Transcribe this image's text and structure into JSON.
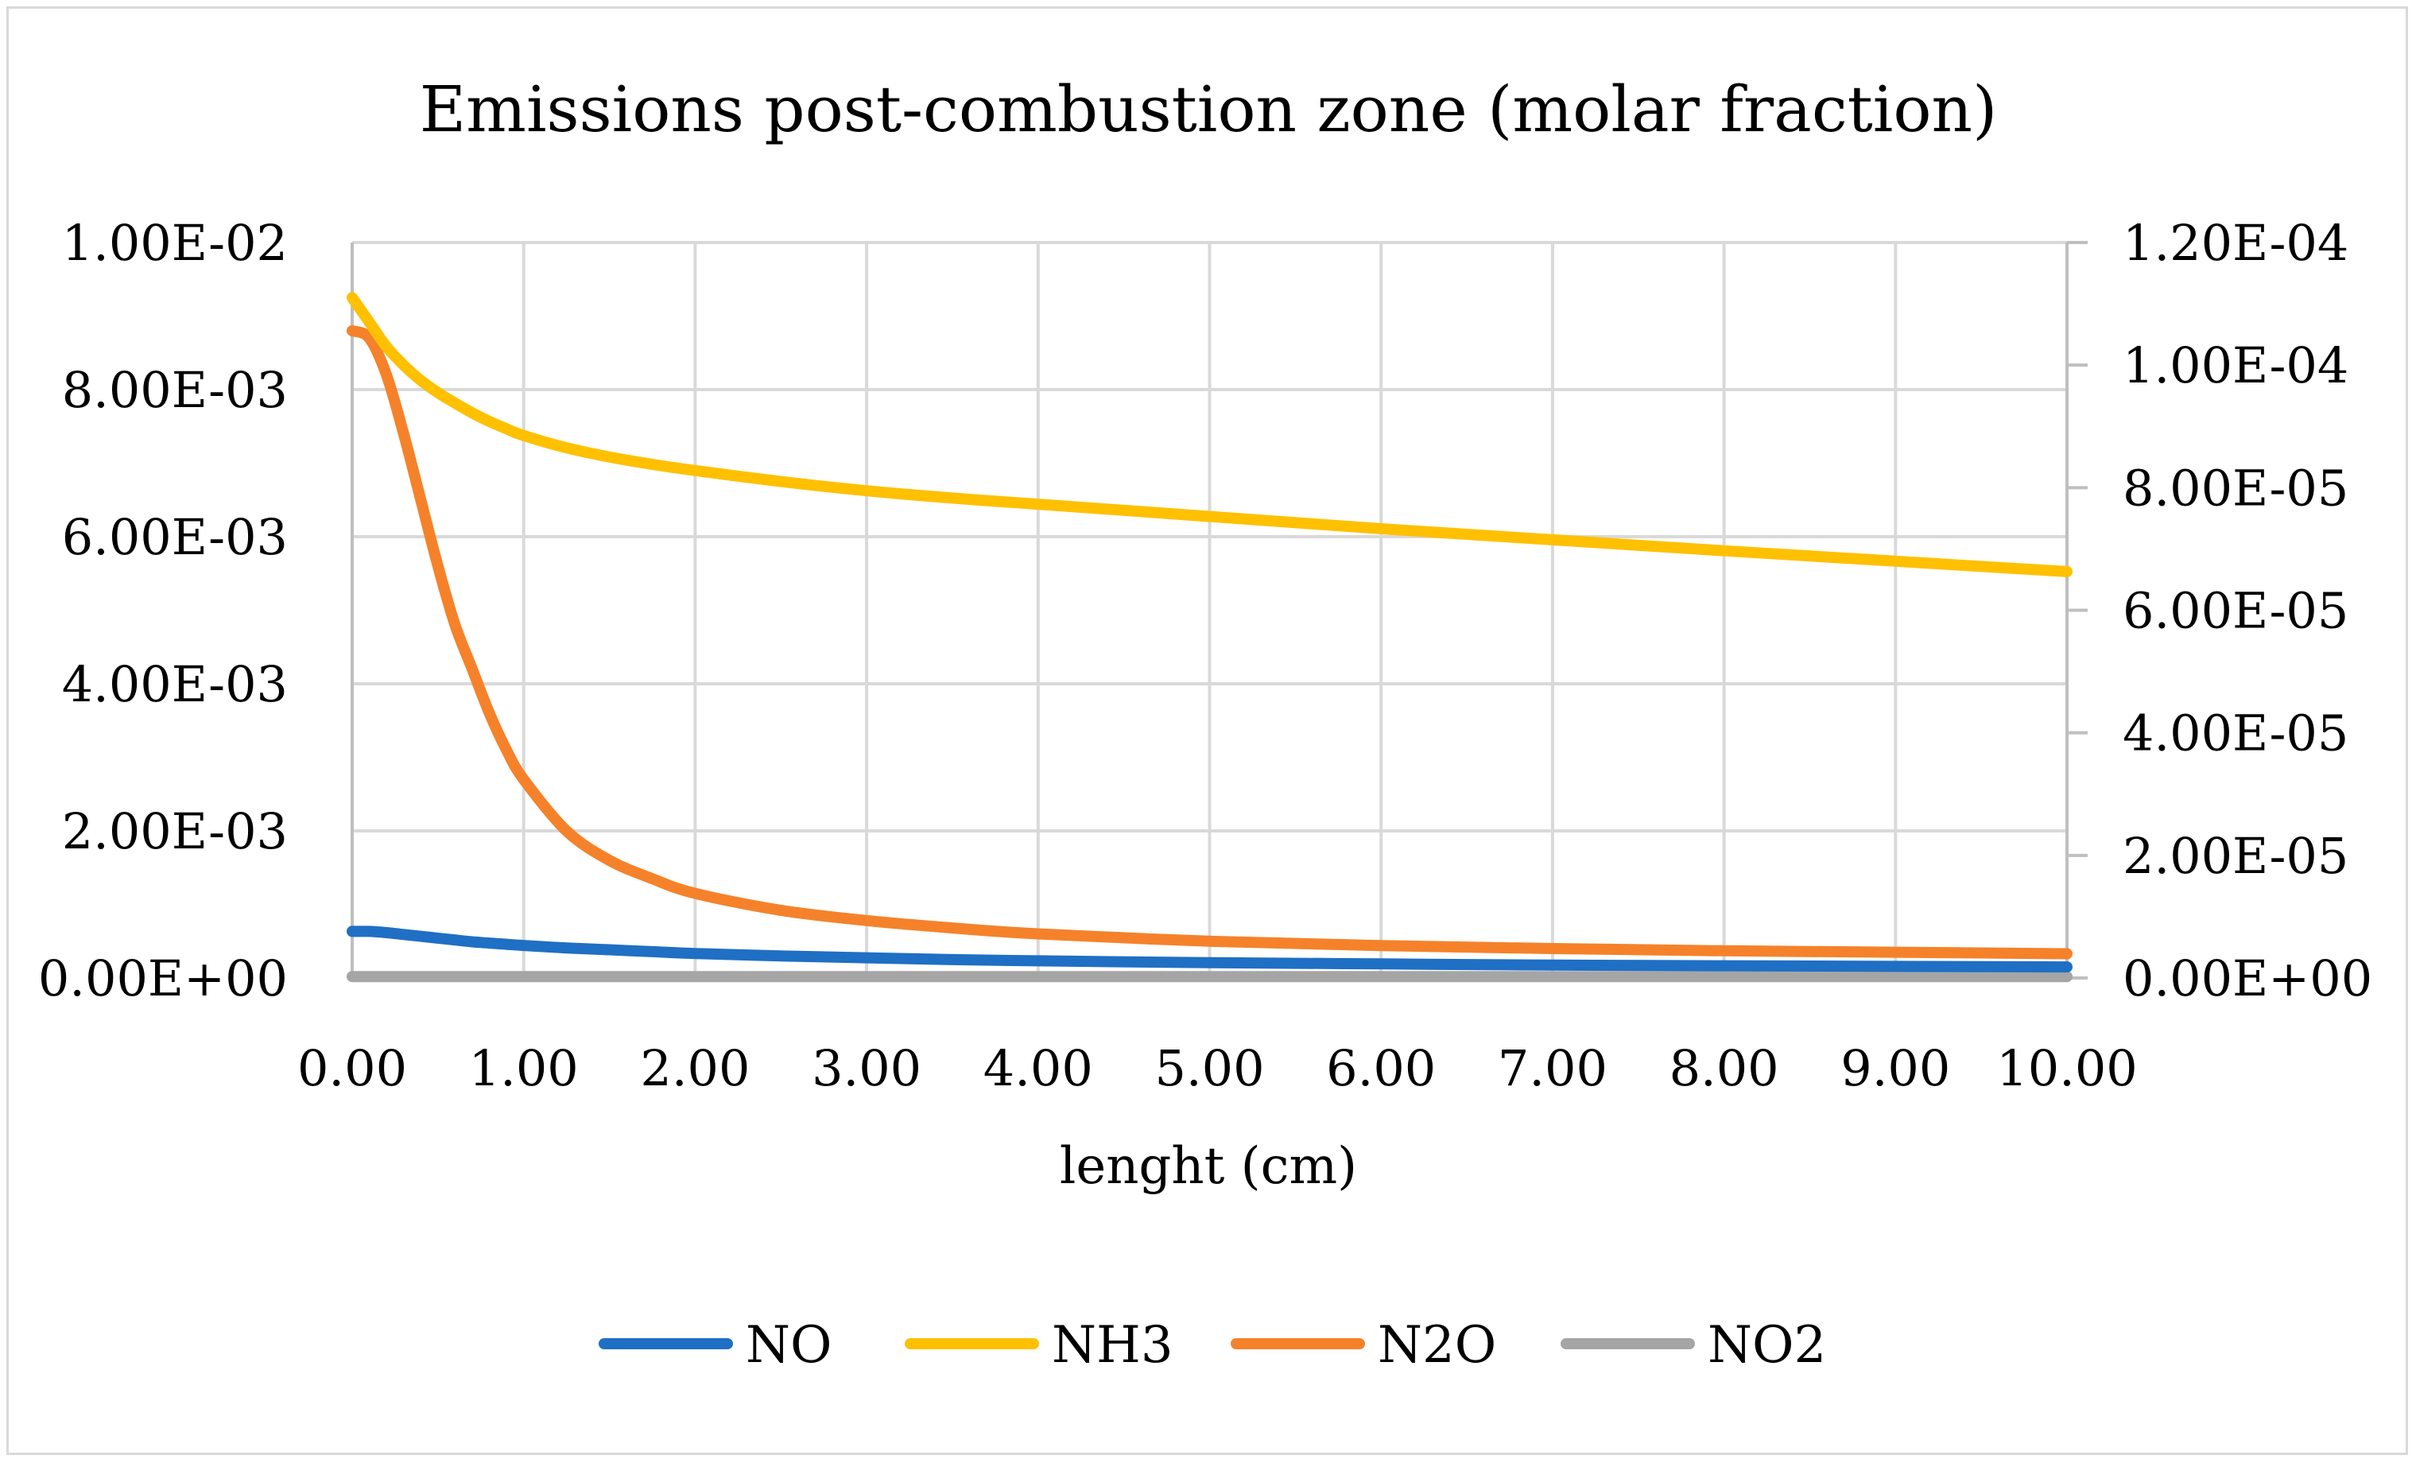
{
  "chart_data": {
    "type": "line",
    "title": "Emissions post-combustion zone (molar fraction)",
    "xlabel": "lenght (cm)",
    "ylabel": "",
    "xlim": [
      0,
      10
    ],
    "ylim": [
      0,
      0.01
    ],
    "y2lim": [
      0,
      0.00012
    ],
    "grid": true,
    "legend_position": "bottom",
    "x_ticks": [
      "0.00",
      "1.00",
      "2.00",
      "3.00",
      "4.00",
      "5.00",
      "6.00",
      "7.00",
      "8.00",
      "9.00",
      "10.00"
    ],
    "y_ticks": [
      "0.00E+00",
      "2.00E-03",
      "4.00E-03",
      "6.00E-03",
      "8.00E-03",
      "1.00E-02"
    ],
    "y2_ticks": [
      "0.00E+00",
      "2.00E-05",
      "4.00E-05",
      "6.00E-05",
      "8.00E-05",
      "1.00E-04",
      "1.20E-04"
    ],
    "x": [
      0,
      0.1,
      0.2,
      0.3,
      0.4,
      0.5,
      0.6,
      0.7,
      0.8,
      0.9,
      1.0,
      1.25,
      1.5,
      1.75,
      2.0,
      2.5,
      3.0,
      3.5,
      4.0,
      5.0,
      6.0,
      7.0,
      8.0,
      9.0,
      10.0
    ],
    "series": [
      {
        "name": "NO",
        "axis": "y2",
        "color": "#1f6fc4",
        "values": [
          7.6e-06,
          7.6e-06,
          7.4e-06,
          7.1e-06,
          6.8e-06,
          6.5e-06,
          6.2e-06,
          5.9e-06,
          5.7e-06,
          5.5e-06,
          5.3e-06,
          4.9e-06,
          4.6e-06,
          4.3e-06,
          4e-06,
          3.6e-06,
          3.3e-06,
          3e-06,
          2.8e-06,
          2.5e-06,
          2.3e-06,
          2.1e-06,
          2e-06,
          1.9e-06,
          1.8e-06
        ]
      },
      {
        "name": "NH3",
        "axis": "y2",
        "color": "#ffc000",
        "values": [
          0.000111,
          0.000107,
          0.000103,
          0.0001,
          9.75e-05,
          9.55e-05,
          9.38e-05,
          9.22e-05,
          9.08e-05,
          8.96e-05,
          8.85e-05,
          8.65e-05,
          8.5e-05,
          8.38e-05,
          8.28e-05,
          8.1e-05,
          7.95e-05,
          7.83e-05,
          7.73e-05,
          7.53e-05,
          7.33e-05,
          7.15e-05,
          6.97e-05,
          6.8e-05,
          6.63e-05
        ]
      },
      {
        "name": "N2O",
        "axis": "y",
        "color": "#f5822a",
        "values": [
          0.0088,
          0.0087,
          0.0082,
          0.0074,
          0.0065,
          0.0056,
          0.0048,
          0.0042,
          0.0036,
          0.0031,
          0.0027,
          0.002,
          0.0016,
          0.00135,
          0.00115,
          0.00092,
          0.00078,
          0.00068,
          0.0006,
          0.0005,
          0.00044,
          0.0004,
          0.00037,
          0.00035,
          0.00033
        ]
      },
      {
        "name": "NO2",
        "axis": "y",
        "color": "#a5a5a5",
        "values": [
          2e-05,
          2e-05,
          2e-05,
          2e-05,
          2e-05,
          2e-05,
          2e-05,
          2e-05,
          2e-05,
          2e-05,
          2e-05,
          2e-05,
          2e-05,
          2e-05,
          2e-05,
          2e-05,
          2e-05,
          2e-05,
          2e-05,
          2e-05,
          2e-05,
          2e-05,
          2e-05,
          2e-05,
          2e-05
        ]
      }
    ]
  }
}
